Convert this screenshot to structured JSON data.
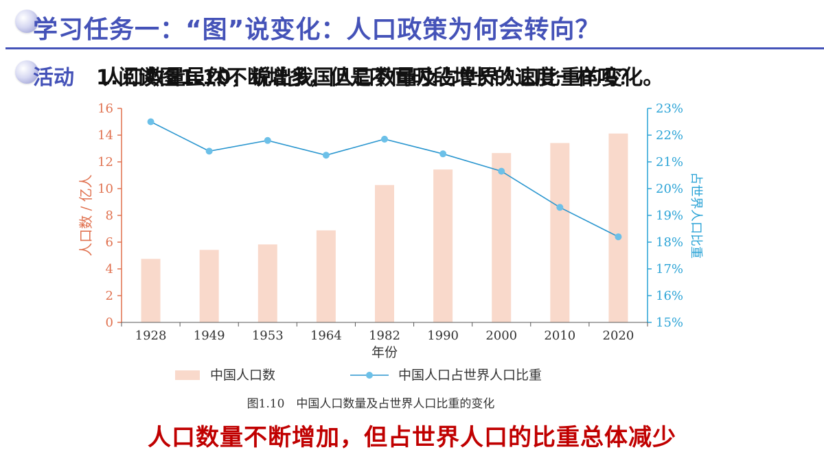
{
  "header": {
    "title": "学习任务一：“图”说变化：人口政策为何会转向？"
  },
  "activity": {
    "label": "活动",
    "text_a": "1.阅读图1.10，说出我国人口数量及占世界人口比重的变化。",
    "text_b": "人口数量虽然不断增多，但是不同时段增长的速度一样吗？"
  },
  "chart_data": {
    "type": "bar+line",
    "categories": [
      "1928",
      "1949",
      "1953",
      "1964",
      "1982",
      "1990",
      "2000",
      "2010",
      "2020"
    ],
    "series": [
      {
        "name": "中国人口数",
        "type": "bar",
        "axis": "left",
        "values": [
          4.75,
          5.42,
          5.83,
          6.88,
          10.27,
          11.43,
          12.66,
          13.41,
          14.12
        ]
      },
      {
        "name": "中国人口占世界人口比重",
        "type": "line",
        "axis": "right",
        "values": [
          22.5,
          21.4,
          21.8,
          21.25,
          21.85,
          21.3,
          20.65,
          19.3,
          18.2
        ]
      }
    ],
    "xlabel": "年份",
    "ylabel_left": "人口数 / 亿人",
    "ylabel_right": "占世界人口比重",
    "ylim_left": [
      0,
      16
    ],
    "yticks_left": [
      "0",
      "2",
      "4",
      "6",
      "8",
      "10",
      "12",
      "14",
      "16"
    ],
    "ylim_right": [
      15,
      23
    ],
    "yticks_right": [
      "15%",
      "16%",
      "17%",
      "18%",
      "19%",
      "20%",
      "21%",
      "22%",
      "23%"
    ],
    "caption": "图1.10　中国人口数量及占世界人口比重的变化",
    "legend_placement": "bottom",
    "grid": false,
    "colors": {
      "bar": "#f9d9cb",
      "line": "#2a96cf",
      "marker": "#6cc0e8",
      "left_axis": "#e0714f",
      "right_axis": "#2aa3d6",
      "text": "#333333"
    }
  },
  "conclusion": "人口数量不断增加，但占世界人口的比重总体减少"
}
